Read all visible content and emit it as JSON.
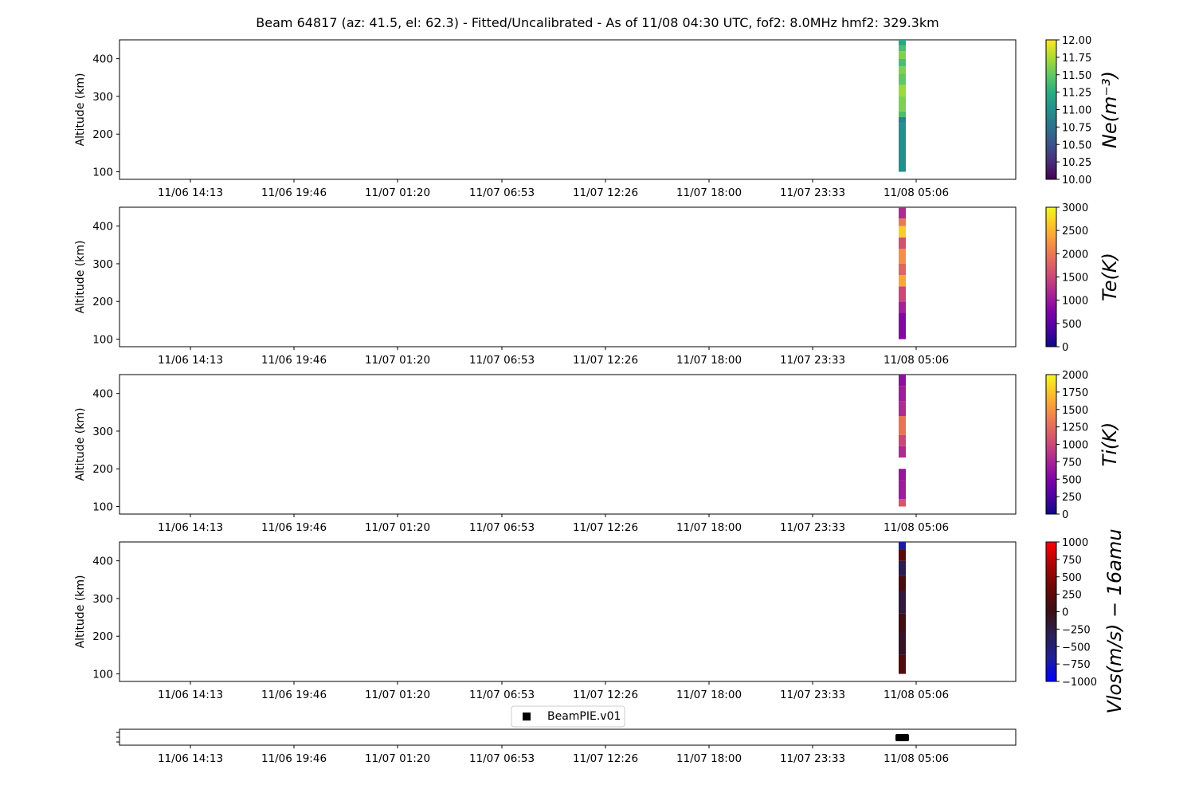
{
  "title": "Beam 64817 (az: 41.5, el: 62.3) - Fitted/Uncalibrated - As of 11/08 04:30 UTC, fof2: 8.0MHz  hmf2: 329.3km",
  "time_ticks": [
    "11/06 14:13",
    "11/06 19:46",
    "11/07 01:20",
    "11/07 06:53",
    "11/07 12:26",
    "11/07 18:00",
    "11/07 23:33",
    "11/08 05:06"
  ],
  "chart_data": [
    {
      "type": "heatmap",
      "name": "panel-ne",
      "ylabel": "Altitude (km)",
      "yticks": [
        100,
        200,
        300,
        400
      ],
      "ylim": [
        80,
        450
      ],
      "colorbar": {
        "label": "Ne(m⁻³)",
        "min": 10.0,
        "max": 12.0,
        "ticks": [
          "10.00",
          "10.25",
          "10.50",
          "10.75",
          "11.00",
          "11.25",
          "11.50",
          "11.75",
          "12.00"
        ],
        "colormap": "viridis"
      },
      "data_column": {
        "time": "11/08 04:30",
        "alt_min": 100,
        "alt_max": 450,
        "cells": [
          [
            100,
            230,
            11.0
          ],
          [
            230,
            245,
            10.9
          ],
          [
            245,
            260,
            11.4
          ],
          [
            260,
            300,
            11.6
          ],
          [
            300,
            330,
            11.7
          ],
          [
            330,
            360,
            11.5
          ],
          [
            360,
            380,
            11.6
          ],
          [
            380,
            400,
            11.4
          ],
          [
            400,
            420,
            11.6
          ],
          [
            420,
            435,
            11.4
          ],
          [
            435,
            450,
            11.2
          ]
        ]
      }
    },
    {
      "type": "heatmap",
      "name": "panel-te",
      "ylabel": "Altitude (km)",
      "yticks": [
        100,
        200,
        300,
        400
      ],
      "ylim": [
        80,
        450
      ],
      "colorbar": {
        "label": "Te(K)",
        "min": 0,
        "max": 3000,
        "ticks": [
          "0",
          "500",
          "1000",
          "1500",
          "2000",
          "2500",
          "3000"
        ],
        "colormap": "plasma"
      },
      "data_column": {
        "time": "11/08 04:30",
        "alt_min": 100,
        "alt_max": 450,
        "cells": [
          [
            100,
            170,
            800
          ],
          [
            170,
            200,
            1100
          ],
          [
            200,
            240,
            1500
          ],
          [
            240,
            270,
            2400
          ],
          [
            270,
            300,
            1800
          ],
          [
            300,
            340,
            2200
          ],
          [
            340,
            370,
            1600
          ],
          [
            370,
            400,
            2700
          ],
          [
            400,
            420,
            2000
          ],
          [
            420,
            450,
            1200
          ]
        ]
      }
    },
    {
      "type": "heatmap",
      "name": "panel-ti",
      "ylabel": "Altitude (km)",
      "yticks": [
        100,
        200,
        300,
        400
      ],
      "ylim": [
        80,
        450
      ],
      "colorbar": {
        "label": "Ti(K)",
        "min": 0,
        "max": 2000,
        "ticks": [
          "0",
          "250",
          "500",
          "750",
          "1000",
          "1250",
          "1500",
          "1750",
          "2000"
        ],
        "colormap": "plasma"
      },
      "data_column": {
        "time": "11/08 04:30",
        "alt_min": 100,
        "alt_max": 450,
        "cells": [
          [
            100,
            120,
            1100
          ],
          [
            120,
            170,
            700
          ],
          [
            170,
            200,
            650
          ],
          [
            230,
            260,
            800
          ],
          [
            260,
            290,
            1000
          ],
          [
            290,
            340,
            1300
          ],
          [
            340,
            380,
            800
          ],
          [
            380,
            420,
            700
          ],
          [
            420,
            450,
            600
          ]
        ]
      }
    },
    {
      "type": "heatmap",
      "name": "panel-vlos",
      "ylabel": "Altitude (km)",
      "yticks": [
        100,
        200,
        300,
        400
      ],
      "ylim": [
        80,
        450
      ],
      "colorbar": {
        "label": "Vlos(m/s) − 16amu",
        "min": -1000,
        "max": 1000,
        "ticks": [
          "1000",
          "750",
          "500",
          "250",
          "0",
          "−250",
          "−500",
          "−750",
          "−1000"
        ],
        "colormap": "bwr-dark"
      },
      "data_column": {
        "time": "11/08 04:30",
        "alt_min": 100,
        "alt_max": 450,
        "cells": [
          [
            100,
            150,
            150
          ],
          [
            150,
            210,
            -100
          ],
          [
            210,
            260,
            50
          ],
          [
            260,
            320,
            -200
          ],
          [
            320,
            360,
            100
          ],
          [
            360,
            400,
            -300
          ],
          [
            400,
            430,
            200
          ],
          [
            430,
            450,
            -700
          ]
        ]
      }
    }
  ],
  "legend": {
    "label": "BeamPIE.v01",
    "marker": "square",
    "color": "#000000"
  },
  "beam_marker": {
    "time": "11/08 04:30"
  }
}
